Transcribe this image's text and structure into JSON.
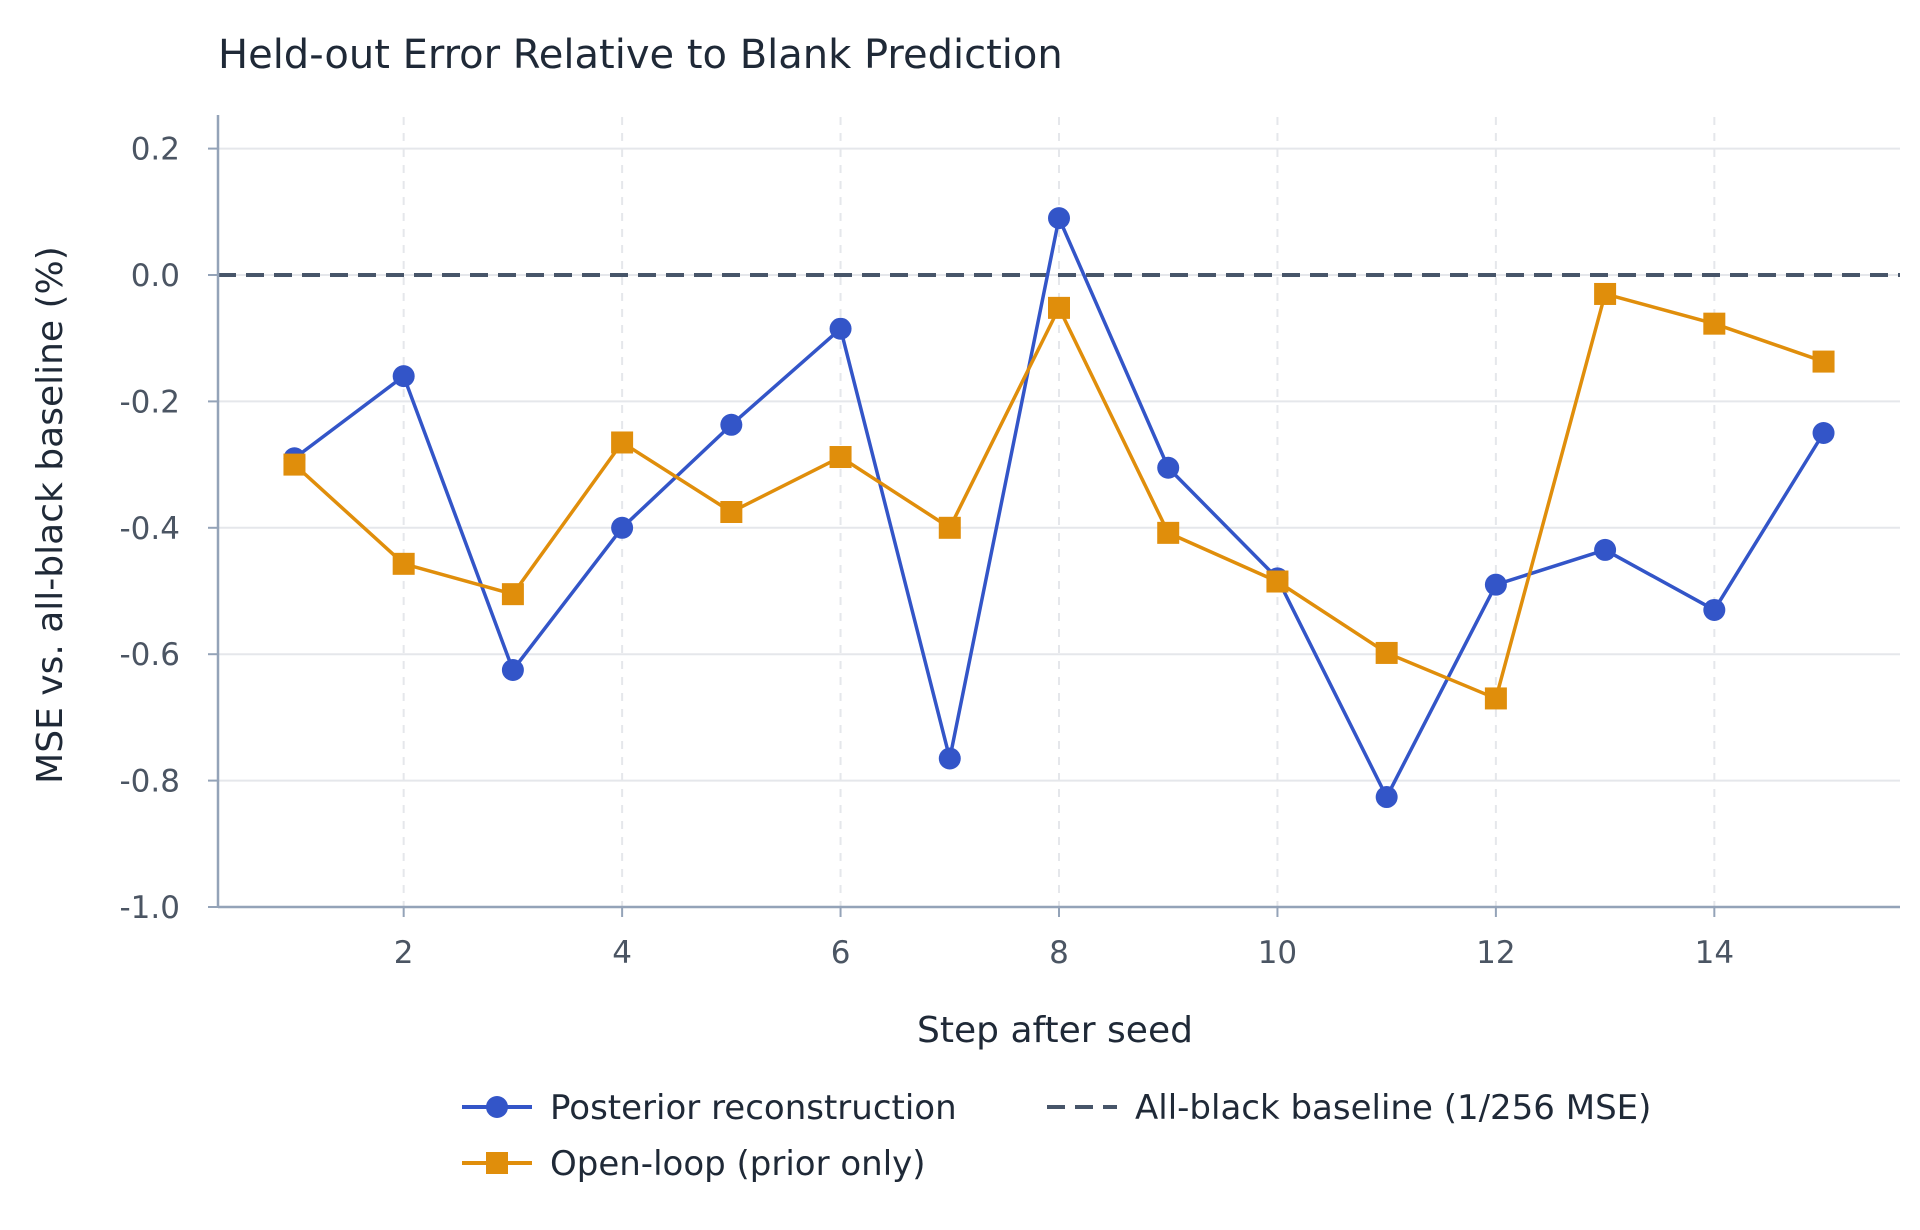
{
  "chart_data": {
    "type": "line",
    "title": "Held-out Error Relative to Blank Prediction",
    "xlabel": "Step after seed",
    "ylabel": "MSE vs. all-black baseline (%)",
    "x": [
      1,
      2,
      3,
      4,
      5,
      6,
      7,
      8,
      9,
      10,
      11,
      12,
      13,
      14,
      15
    ],
    "xlim": [
      0.3,
      15.7
    ],
    "ylim": [
      -1.0,
      0.25
    ],
    "xticks": [
      2,
      4,
      6,
      8,
      10,
      12,
      14
    ],
    "xtick_labels": [
      "2",
      "4",
      "6",
      "8",
      "10",
      "12",
      "14"
    ],
    "yticks": [
      0.2,
      0.0,
      -0.2,
      -0.4,
      -0.6,
      -0.8,
      -1.0
    ],
    "ytick_labels": [
      "0.2",
      "0.0",
      "-0.2",
      "-0.4",
      "-0.6",
      "-0.8",
      "-1.0"
    ],
    "grid": true,
    "legend_position": "bottom",
    "series": [
      {
        "name": "Posterior reconstruction",
        "color": "#3355c8",
        "marker": "circle",
        "values": [
          -0.29,
          -0.16,
          -0.625,
          -0.4,
          -0.237,
          -0.085,
          -0.765,
          0.09,
          -0.305,
          -0.48,
          -0.826,
          -0.49,
          -0.435,
          -0.53,
          -0.25
        ]
      },
      {
        "name": "Open-loop (prior only)",
        "color": "#e08e0b",
        "marker": "square",
        "values": [
          -0.3,
          -0.457,
          -0.505,
          -0.265,
          -0.375,
          -0.288,
          -0.4,
          -0.052,
          -0.408,
          -0.485,
          -0.598,
          -0.67,
          -0.03,
          -0.077,
          -0.137
        ]
      }
    ],
    "reference_line": {
      "name": "All-black baseline (1/256 MSE)",
      "y": 0.0,
      "color": "#475569",
      "style": "dashed"
    }
  }
}
